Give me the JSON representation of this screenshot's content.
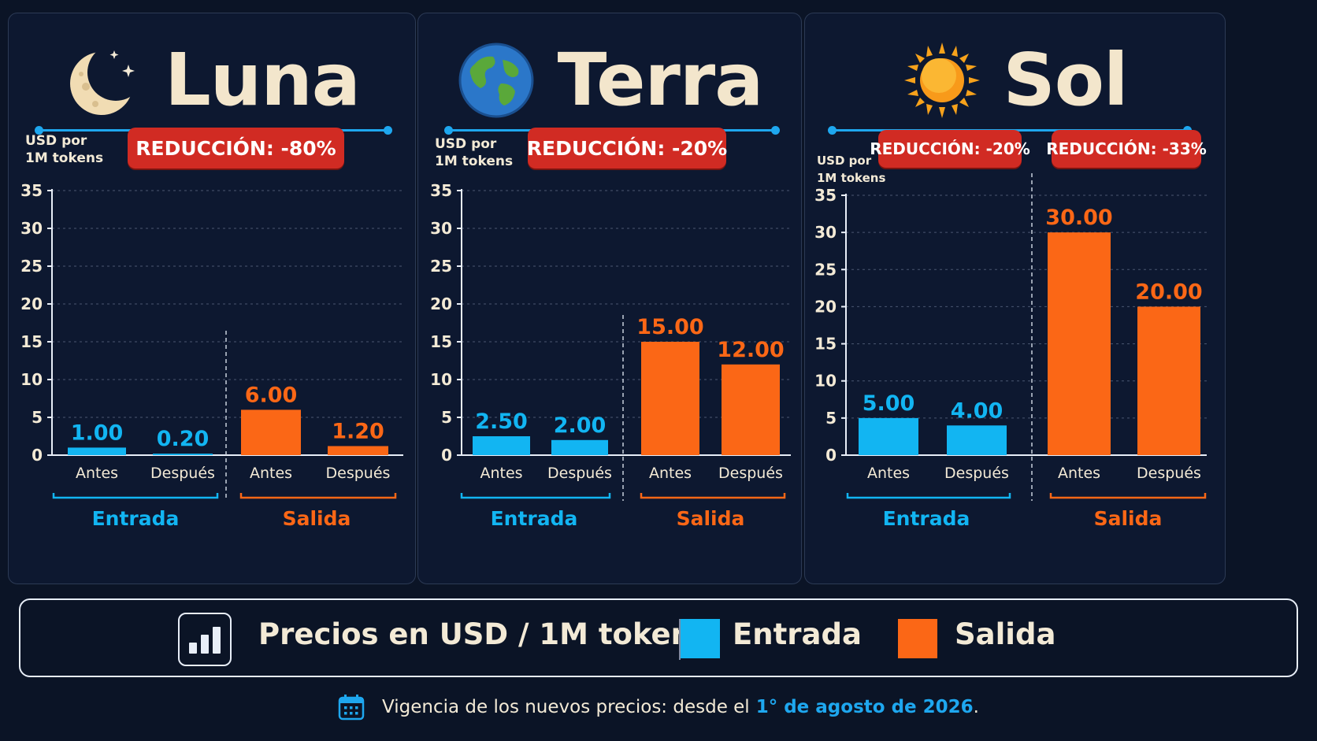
{
  "colors": {
    "input": "#12b5f2",
    "output": "#fb6716",
    "badge": "#d12b23",
    "accent_line": "#1ea7ef",
    "background": "#0b1426"
  },
  "chart_data": [
    {
      "type": "bar",
      "title": "Luna",
      "icon": "crescent-moon-icon",
      "ylabel": "USD por 1M tokens",
      "ylabel_lines": [
        "USD por",
        "1M tokens"
      ],
      "ylim": [
        0,
        35
      ],
      "yticks": [
        0,
        5,
        10,
        15,
        20,
        25,
        30,
        35
      ],
      "categories": [
        "Antes",
        "Después",
        "Antes",
        "Después"
      ],
      "groups": [
        {
          "name": "Entrada",
          "categories": [
            "Antes",
            "Después"
          ],
          "values": [
            1.0,
            0.2
          ],
          "labels": [
            "1.00",
            "0.20"
          ]
        },
        {
          "name": "Salida",
          "categories": [
            "Antes",
            "Después"
          ],
          "values": [
            6.0,
            1.2
          ],
          "labels": [
            "6.00",
            "1.20"
          ]
        }
      ],
      "badges": [
        "REDUCCIÓN: -80%"
      ],
      "grid": true
    },
    {
      "type": "bar",
      "title": "Terra",
      "icon": "earth-globe-icon",
      "ylabel": "USD por 1M tokens",
      "ylabel_lines": [
        "USD por",
        "1M tokens"
      ],
      "ylim": [
        0,
        35
      ],
      "yticks": [
        0,
        5,
        10,
        15,
        20,
        25,
        30,
        35
      ],
      "categories": [
        "Antes",
        "Después",
        "Antes",
        "Después"
      ],
      "groups": [
        {
          "name": "Entrada",
          "categories": [
            "Antes",
            "Después"
          ],
          "values": [
            2.5,
            2.0
          ],
          "labels": [
            "2.50",
            "2.00"
          ]
        },
        {
          "name": "Salida",
          "categories": [
            "Antes",
            "Después"
          ],
          "values": [
            15.0,
            12.0
          ],
          "labels": [
            "15.00",
            "12.00"
          ]
        }
      ],
      "badges": [
        "REDUCCIÓN: -20%"
      ],
      "grid": true
    },
    {
      "type": "bar",
      "title": "Sol",
      "icon": "sun-icon",
      "ylabel": "USD por 1M tokens",
      "ylabel_lines": [
        "USD por",
        "1M tokens"
      ],
      "ylim": [
        0,
        35
      ],
      "yticks": [
        0,
        5,
        10,
        15,
        20,
        25,
        30,
        35
      ],
      "categories": [
        "Antes",
        "Después",
        "Antes",
        "Después"
      ],
      "groups": [
        {
          "name": "Entrada",
          "categories": [
            "Antes",
            "Después"
          ],
          "values": [
            5.0,
            4.0
          ],
          "labels": [
            "5.00",
            "4.00"
          ]
        },
        {
          "name": "Salida",
          "categories": [
            "Antes",
            "Después"
          ],
          "values": [
            30.0,
            20.0
          ],
          "labels": [
            "30.00",
            "20.00"
          ]
        }
      ],
      "badges": [
        "REDUCCIÓN: -20%",
        "REDUCCIÓN: -33%"
      ],
      "grid": true
    }
  ],
  "legend": {
    "icon": "bar-chart-icon",
    "title": "Precios en USD / 1M tokens",
    "items": [
      {
        "label": "Entrada",
        "color": "#12b5f2"
      },
      {
        "label": "Salida",
        "color": "#fb6716"
      }
    ]
  },
  "footer": {
    "icon": "calendar-icon",
    "text": "Vigencia de los nuevos precios: desde el",
    "highlight": "1° de agosto de 2026",
    "end": "."
  }
}
